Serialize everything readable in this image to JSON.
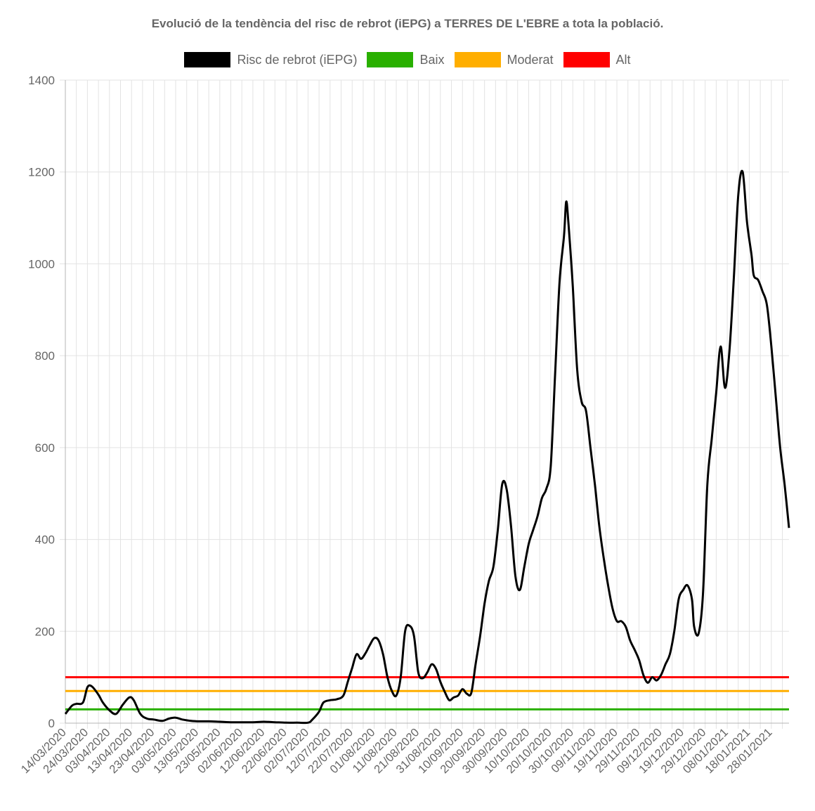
{
  "chart_data": {
    "type": "line",
    "title": "Evolució de la tendència del risc de rebrot (iEPG) a TERRES DE L'EBRE a tota la població.",
    "xlabel": "",
    "ylabel": "",
    "ylim": [
      0,
      1400
    ],
    "yticks": [
      0,
      200,
      400,
      600,
      800,
      1000,
      1200,
      1400
    ],
    "x_start": "14/03/2020",
    "x_end": "05/02/2021",
    "xticks": [
      "14/03/2020",
      "24/03/2020",
      "03/04/2020",
      "13/04/2020",
      "23/04/2020",
      "03/05/2020",
      "13/05/2020",
      "23/05/2020",
      "02/06/2020",
      "12/06/2020",
      "22/06/2020",
      "02/07/2020",
      "12/07/2020",
      "22/07/2020",
      "01/08/2020",
      "11/08/2020",
      "21/08/2020",
      "31/08/2020",
      "10/09/2020",
      "20/09/2020",
      "30/09/2020",
      "10/10/2020",
      "20/10/2020",
      "30/10/2020",
      "09/11/2020",
      "19/11/2020",
      "29/11/2020",
      "09/12/2020",
      "19/12/2020",
      "29/12/2020",
      "08/01/2021",
      "18/01/2021",
      "28/01/2021"
    ],
    "grid": true,
    "legend_position": "top",
    "series": [
      {
        "name": "Risc de rebrot (iEPG)",
        "color": "#000000",
        "points": [
          [
            "14/03/2020",
            20
          ],
          [
            "17/03/2020",
            38
          ],
          [
            "19/03/2020",
            42
          ],
          [
            "22/03/2020",
            45
          ],
          [
            "24/03/2020",
            78
          ],
          [
            "26/03/2020",
            80
          ],
          [
            "29/03/2020",
            62
          ],
          [
            "31/03/2020",
            45
          ],
          [
            "03/04/2020",
            28
          ],
          [
            "06/04/2020",
            20
          ],
          [
            "09/04/2020",
            40
          ],
          [
            "12/04/2020",
            56
          ],
          [
            "14/04/2020",
            50
          ],
          [
            "17/04/2020",
            20
          ],
          [
            "20/04/2020",
            10
          ],
          [
            "23/04/2020",
            8
          ],
          [
            "27/04/2020",
            5
          ],
          [
            "30/04/2020",
            10
          ],
          [
            "03/05/2020",
            12
          ],
          [
            "06/05/2020",
            8
          ],
          [
            "10/05/2020",
            5
          ],
          [
            "14/05/2020",
            4
          ],
          [
            "18/05/2020",
            4
          ],
          [
            "23/05/2020",
            3
          ],
          [
            "28/05/2020",
            2
          ],
          [
            "02/06/2020",
            2
          ],
          [
            "07/06/2020",
            2
          ],
          [
            "12/06/2020",
            3
          ],
          [
            "17/06/2020",
            2
          ],
          [
            "22/06/2020",
            1
          ],
          [
            "27/06/2020",
            1
          ],
          [
            "02/07/2020",
            1
          ],
          [
            "04/07/2020",
            8
          ],
          [
            "07/07/2020",
            25
          ],
          [
            "09/07/2020",
            45
          ],
          [
            "12/07/2020",
            50
          ],
          [
            "15/07/2020",
            52
          ],
          [
            "18/07/2020",
            60
          ],
          [
            "20/07/2020",
            90
          ],
          [
            "22/07/2020",
            120
          ],
          [
            "24/07/2020",
            150
          ],
          [
            "26/07/2020",
            140
          ],
          [
            "28/07/2020",
            152
          ],
          [
            "30/07/2020",
            170
          ],
          [
            "01/08/2020",
            185
          ],
          [
            "03/08/2020",
            180
          ],
          [
            "05/08/2020",
            150
          ],
          [
            "07/08/2020",
            100
          ],
          [
            "09/08/2020",
            70
          ],
          [
            "11/08/2020",
            60
          ],
          [
            "13/08/2020",
            100
          ],
          [
            "15/08/2020",
            200
          ],
          [
            "17/08/2020",
            212
          ],
          [
            "19/08/2020",
            190
          ],
          [
            "21/08/2020",
            110
          ],
          [
            "23/08/2020",
            98
          ],
          [
            "25/08/2020",
            110
          ],
          [
            "27/08/2020",
            128
          ],
          [
            "29/08/2020",
            118
          ],
          [
            "31/08/2020",
            90
          ],
          [
            "02/09/2020",
            68
          ],
          [
            "04/09/2020",
            50
          ],
          [
            "06/09/2020",
            56
          ],
          [
            "08/09/2020",
            60
          ],
          [
            "10/09/2020",
            74
          ],
          [
            "12/09/2020",
            64
          ],
          [
            "14/09/2020",
            66
          ],
          [
            "16/09/2020",
            130
          ],
          [
            "18/09/2020",
            190
          ],
          [
            "20/09/2020",
            260
          ],
          [
            "22/09/2020",
            310
          ],
          [
            "24/09/2020",
            340
          ],
          [
            "26/09/2020",
            420
          ],
          [
            "28/09/2020",
            520
          ],
          [
            "30/09/2020",
            510
          ],
          [
            "02/10/2020",
            430
          ],
          [
            "04/10/2020",
            320
          ],
          [
            "06/10/2020",
            290
          ],
          [
            "08/10/2020",
            340
          ],
          [
            "10/10/2020",
            390
          ],
          [
            "12/10/2020",
            420
          ],
          [
            "14/10/2020",
            450
          ],
          [
            "16/10/2020",
            490
          ],
          [
            "18/10/2020",
            510
          ],
          [
            "20/10/2020",
            560
          ],
          [
            "22/10/2020",
            760
          ],
          [
            "24/10/2020",
            960
          ],
          [
            "26/10/2020",
            1060
          ],
          [
            "27/10/2020",
            1135
          ],
          [
            "28/10/2020",
            1090
          ],
          [
            "30/10/2020",
            950
          ],
          [
            "01/11/2020",
            770
          ],
          [
            "03/11/2020",
            700
          ],
          [
            "05/11/2020",
            680
          ],
          [
            "07/11/2020",
            600
          ],
          [
            "09/11/2020",
            520
          ],
          [
            "11/11/2020",
            430
          ],
          [
            "13/11/2020",
            360
          ],
          [
            "15/11/2020",
            300
          ],
          [
            "17/11/2020",
            250
          ],
          [
            "19/11/2020",
            222
          ],
          [
            "21/11/2020",
            222
          ],
          [
            "23/11/2020",
            210
          ],
          [
            "25/11/2020",
            180
          ],
          [
            "27/11/2020",
            160
          ],
          [
            "29/11/2020",
            138
          ],
          [
            "01/12/2020",
            105
          ],
          [
            "03/12/2020",
            88
          ],
          [
            "05/12/2020",
            100
          ],
          [
            "07/12/2020",
            93
          ],
          [
            "09/12/2020",
            105
          ],
          [
            "11/12/2020",
            128
          ],
          [
            "13/12/2020",
            150
          ],
          [
            "15/12/2020",
            200
          ],
          [
            "17/12/2020",
            270
          ],
          [
            "19/12/2020",
            290
          ],
          [
            "21/12/2020",
            300
          ],
          [
            "23/12/2020",
            270
          ],
          [
            "24/12/2020",
            210
          ],
          [
            "26/12/2020",
            195
          ],
          [
            "28/12/2020",
            280
          ],
          [
            "30/12/2020",
            520
          ],
          [
            "01/01/2021",
            620
          ],
          [
            "03/01/2021",
            720
          ],
          [
            "05/01/2021",
            820
          ],
          [
            "07/01/2021",
            730
          ],
          [
            "09/01/2021",
            810
          ],
          [
            "11/01/2021",
            970
          ],
          [
            "13/01/2021",
            1150
          ],
          [
            "15/01/2021",
            1200
          ],
          [
            "17/01/2021",
            1090
          ],
          [
            "19/01/2021",
            1020
          ],
          [
            "20/01/2021",
            975
          ],
          [
            "22/01/2021",
            965
          ],
          [
            "24/01/2021",
            940
          ],
          [
            "26/01/2021",
            910
          ],
          [
            "28/01/2021",
            820
          ],
          [
            "30/01/2021",
            710
          ],
          [
            "01/02/2021",
            600
          ],
          [
            "03/02/2021",
            520
          ],
          [
            "05/02/2021",
            425
          ]
        ]
      },
      {
        "name": "Baix",
        "color": "#29b000",
        "constant": 30
      },
      {
        "name": "Moderat",
        "color": "#ffae00",
        "constant": 70
      },
      {
        "name": "Alt",
        "color": "#ff0000",
        "constant": 100
      }
    ]
  }
}
